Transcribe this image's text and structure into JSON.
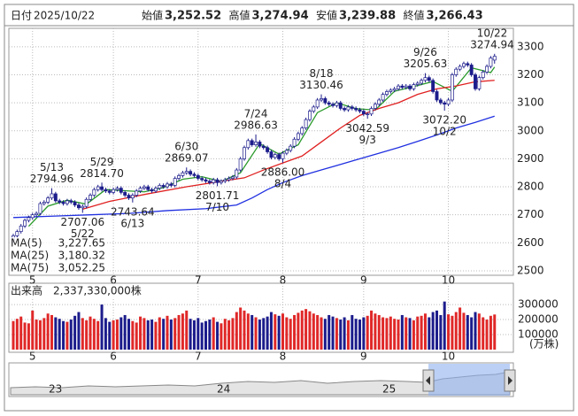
{
  "header": {
    "date_label": "日付",
    "date": "2025/10/22",
    "fields": [
      {
        "label": "始値",
        "value": "3,252.52",
        "color": "#000000"
      },
      {
        "label": "高値",
        "value": "3,274.94",
        "color": "#e00000"
      },
      {
        "label": "安値",
        "value": "3,239.88",
        "color": "#1a8a1a"
      },
      {
        "label": "終値",
        "value": "3,266.43",
        "color": "#000000"
      }
    ]
  },
  "chart_data": [
    {
      "type": "candlestick",
      "up_color": "#ffffff",
      "down_color": "#1c1c8c",
      "grid": true,
      "ylim": [
        2484,
        3366
      ],
      "yticks": [
        2500,
        2600,
        2700,
        2800,
        2900,
        3000,
        3100,
        3200,
        3300
      ],
      "xticks": [
        {
          "value": 5,
          "label": "5"
        },
        {
          "value": 26,
          "label": "6"
        },
        {
          "value": 48,
          "label": "7"
        },
        {
          "value": 70,
          "label": "8"
        },
        {
          "value": 91,
          "label": "9"
        },
        {
          "value": 113,
          "label": "10"
        }
      ],
      "ohlc": [
        [
          2610,
          2632,
          2600,
          2625
        ],
        [
          2625,
          2647,
          2618,
          2640
        ],
        [
          2640,
          2667,
          2633,
          2660
        ],
        [
          2660,
          2687,
          2653,
          2680
        ],
        [
          2680,
          2697,
          2673,
          2690
        ],
        [
          2690,
          2707,
          2683,
          2700
        ],
        [
          2700,
          2712,
          2693,
          2705
        ],
        [
          2705,
          2747,
          2698,
          2740
        ],
        [
          2740,
          2752,
          2733,
          2745
        ],
        [
          2745,
          2767,
          2738,
          2760
        ],
        [
          2760,
          2795,
          2753,
          2775
        ],
        [
          2775,
          2782,
          2743,
          2750
        ],
        [
          2750,
          2757,
          2738,
          2745
        ],
        [
          2745,
          2752,
          2733,
          2740
        ],
        [
          2740,
          2757,
          2733,
          2750
        ],
        [
          2750,
          2757,
          2738,
          2745
        ],
        [
          2745,
          2752,
          2728,
          2735
        ],
        [
          2735,
          2742,
          2718,
          2725
        ],
        [
          2725,
          2737,
          2707,
          2730
        ],
        [
          2730,
          2762,
          2723,
          2755
        ],
        [
          2755,
          2777,
          2748,
          2770
        ],
        [
          2770,
          2797,
          2763,
          2790
        ],
        [
          2790,
          2807,
          2783,
          2800
        ],
        [
          2800,
          2815,
          2783,
          2790
        ],
        [
          2790,
          2797,
          2778,
          2785
        ],
        [
          2785,
          2792,
          2773,
          2780
        ],
        [
          2780,
          2797,
          2773,
          2790
        ],
        [
          2790,
          2802,
          2783,
          2795
        ],
        [
          2795,
          2802,
          2773,
          2780
        ],
        [
          2780,
          2787,
          2763,
          2770
        ],
        [
          2770,
          2777,
          2753,
          2760
        ],
        [
          2760,
          2777,
          2744,
          2770
        ],
        [
          2770,
          2792,
          2763,
          2785
        ],
        [
          2785,
          2802,
          2778,
          2795
        ],
        [
          2795,
          2807,
          2788,
          2800
        ],
        [
          2800,
          2807,
          2783,
          2790
        ],
        [
          2790,
          2797,
          2778,
          2785
        ],
        [
          2785,
          2802,
          2778,
          2795
        ],
        [
          2795,
          2812,
          2788,
          2805
        ],
        [
          2805,
          2812,
          2793,
          2800
        ],
        [
          2800,
          2817,
          2793,
          2810
        ],
        [
          2810,
          2817,
          2798,
          2805
        ],
        [
          2805,
          2837,
          2798,
          2830
        ],
        [
          2830,
          2847,
          2823,
          2840
        ],
        [
          2840,
          2857,
          2833,
          2850
        ],
        [
          2850,
          2869,
          2843,
          2855
        ],
        [
          2855,
          2862,
          2838,
          2845
        ],
        [
          2845,
          2852,
          2833,
          2840
        ],
        [
          2840,
          2847,
          2823,
          2830
        ],
        [
          2830,
          2837,
          2818,
          2825
        ],
        [
          2825,
          2832,
          2813,
          2820
        ],
        [
          2820,
          2827,
          2808,
          2815
        ],
        [
          2815,
          2832,
          2808,
          2825
        ],
        [
          2825,
          2832,
          2802,
          2815
        ],
        [
          2815,
          2827,
          2808,
          2820
        ],
        [
          2820,
          2832,
          2813,
          2825
        ],
        [
          2825,
          2837,
          2818,
          2830
        ],
        [
          2830,
          2842,
          2823,
          2835
        ],
        [
          2835,
          2867,
          2828,
          2860
        ],
        [
          2860,
          2907,
          2853,
          2900
        ],
        [
          2900,
          2947,
          2893,
          2940
        ],
        [
          2940,
          2972,
          2933,
          2965
        ],
        [
          2965,
          2972,
          2943,
          2950
        ],
        [
          2950,
          2987,
          2943,
          2960
        ],
        [
          2960,
          2967,
          2938,
          2945
        ],
        [
          2945,
          2952,
          2933,
          2940
        ],
        [
          2940,
          2947,
          2918,
          2925
        ],
        [
          2925,
          2932,
          2898,
          2905
        ],
        [
          2905,
          2922,
          2898,
          2915
        ],
        [
          2915,
          2922,
          2893,
          2900
        ],
        [
          2900,
          2927,
          2886,
          2920
        ],
        [
          2920,
          2937,
          2913,
          2930
        ],
        [
          2930,
          2952,
          2923,
          2945
        ],
        [
          2945,
          2977,
          2938,
          2970
        ],
        [
          2970,
          2997,
          2963,
          2990
        ],
        [
          2990,
          3017,
          2983,
          3010
        ],
        [
          3010,
          3047,
          3003,
          3040
        ],
        [
          3040,
          3077,
          3033,
          3070
        ],
        [
          3070,
          3092,
          3063,
          3085
        ],
        [
          3085,
          3117,
          3078,
          3110
        ],
        [
          3110,
          3130,
          3103,
          3115
        ],
        [
          3115,
          3122,
          3093,
          3100
        ],
        [
          3100,
          3107,
          3088,
          3095
        ],
        [
          3095,
          3102,
          3083,
          3090
        ],
        [
          3090,
          3107,
          3083,
          3100
        ],
        [
          3100,
          3107,
          3073,
          3080
        ],
        [
          3080,
          3087,
          3068,
          3075
        ],
        [
          3075,
          3092,
          3068,
          3085
        ],
        [
          3085,
          3092,
          3073,
          3080
        ],
        [
          3080,
          3087,
          3068,
          3075
        ],
        [
          3075,
          3082,
          3063,
          3070
        ],
        [
          3070,
          3077,
          3053,
          3060
        ],
        [
          3060,
          3067,
          3043,
          3060
        ],
        [
          3060,
          3087,
          3053,
          3080
        ],
        [
          3080,
          3102,
          3073,
          3095
        ],
        [
          3095,
          3117,
          3088,
          3110
        ],
        [
          3110,
          3137,
          3103,
          3130
        ],
        [
          3130,
          3147,
          3123,
          3140
        ],
        [
          3140,
          3152,
          3133,
          3145
        ],
        [
          3145,
          3157,
          3138,
          3150
        ],
        [
          3150,
          3167,
          3143,
          3160
        ],
        [
          3160,
          3167,
          3148,
          3155
        ],
        [
          3155,
          3167,
          3148,
          3160
        ],
        [
          3160,
          3167,
          3143,
          3150
        ],
        [
          3150,
          3172,
          3143,
          3165
        ],
        [
          3165,
          3177,
          3158,
          3170
        ],
        [
          3170,
          3187,
          3163,
          3180
        ],
        [
          3180,
          3206,
          3173,
          3190
        ],
        [
          3190,
          3197,
          3173,
          3180
        ],
        [
          3180,
          3187,
          3133,
          3140
        ],
        [
          3140,
          3147,
          3103,
          3110
        ],
        [
          3110,
          3117,
          3093,
          3100
        ],
        [
          3100,
          3107,
          3072,
          3095
        ],
        [
          3095,
          3117,
          3088,
          3110
        ],
        [
          3110,
          3207,
          3103,
          3200
        ],
        [
          3200,
          3227,
          3193,
          3220
        ],
        [
          3220,
          3237,
          3213,
          3230
        ],
        [
          3230,
          3247,
          3223,
          3240
        ],
        [
          3240,
          3247,
          3228,
          3235
        ],
        [
          3235,
          3242,
          3193,
          3200
        ],
        [
          3200,
          3207,
          3143,
          3150
        ],
        [
          3150,
          3197,
          3143,
          3190
        ],
        [
          3190,
          3217,
          3183,
          3210
        ],
        [
          3210,
          3237,
          3203,
          3230
        ],
        [
          3230,
          3267,
          3223,
          3260
        ],
        [
          3252.52,
          3274.94,
          3239.88,
          3266.43
        ]
      ],
      "series": [
        {
          "name": "MA(5)",
          "color": "#2a9a2a",
          "value_label": "3,227.65",
          "x": [
            4,
            9,
            14,
            19,
            24,
            29,
            34,
            39,
            44,
            49,
            54,
            59,
            64,
            69,
            74,
            79,
            84,
            89,
            94,
            99,
            104,
            109,
            114,
            119,
            124,
            125
          ],
          "values": [
            2659,
            2731,
            2752,
            2738,
            2790,
            2786,
            2782,
            2797,
            2827,
            2836,
            2819,
            2850,
            2954,
            2917,
            2950,
            3065,
            3100,
            3079,
            3074,
            3141,
            3158,
            3176,
            3141,
            3225,
            3208,
            3227.65
          ]
        },
        {
          "name": "MA(25)",
          "color": "#e02020",
          "value_label": "3,180.32",
          "x": [
            18,
            25,
            35,
            45,
            55,
            60,
            65,
            70,
            75,
            80,
            85,
            90,
            95,
            100,
            105,
            110,
            115,
            120,
            125
          ],
          "values": [
            2720,
            2748,
            2775,
            2800,
            2822,
            2832,
            2860,
            2885,
            2910,
            2960,
            3010,
            3055,
            3080,
            3100,
            3130,
            3150,
            3160,
            3175,
            3180.32
          ]
        },
        {
          "name": "MA(75)",
          "color": "#2030e0",
          "value_label": "3,052.25",
          "x": [
            0,
            10,
            20,
            30,
            40,
            50,
            58,
            62,
            66,
            70,
            75,
            80,
            85,
            90,
            95,
            100,
            105,
            110,
            115,
            120,
            125
          ],
          "values": [
            2690,
            2695,
            2700,
            2705,
            2715,
            2722,
            2735,
            2760,
            2790,
            2815,
            2840,
            2860,
            2880,
            2900,
            2920,
            2940,
            2962,
            2985,
            3010,
            3030,
            3052.25
          ]
        }
      ],
      "annotations": [
        {
          "date": "5/13",
          "value": 2794.96,
          "x": 10
        },
        {
          "date": "5/22",
          "value": 2707.06,
          "x": 18
        },
        {
          "date": "5/29",
          "value": 2814.7,
          "value_label": "2814.70",
          "x": 23
        },
        {
          "date": "6/13",
          "value": 2743.64,
          "x": 31
        },
        {
          "date": "6/30",
          "value": 2869.07,
          "x": 45
        },
        {
          "date": "7/10",
          "value": 2801.71,
          "x": 53
        },
        {
          "date": "7/24",
          "value": 2986.63,
          "x": 63
        },
        {
          "date": "8/4",
          "value": 2886,
          "value_label": "2886.00",
          "x": 70
        },
        {
          "date": "8/18",
          "value": 3130.46,
          "x": 80
        },
        {
          "date": "9/3",
          "value": 3042.59,
          "x": 92
        },
        {
          "date": "9/26",
          "value": 3205.63,
          "x": 107
        },
        {
          "date": "10/2",
          "value": 3072.2,
          "value_label": "3072.20",
          "x": 112
        },
        {
          "date": "10/22",
          "value": 3274.94,
          "x": 125
        }
      ]
    },
    {
      "type": "bar",
      "title": "出来高　2,337,330,000株",
      "unit": "(万株)",
      "up_color": "#e02828",
      "down_color": "#1c1c8c",
      "ylim": [
        0,
        430000
      ],
      "yticks": [
        100000,
        200000,
        300000
      ],
      "xticks": [
        {
          "value": 5,
          "label": "5"
        },
        {
          "value": 26,
          "label": "6"
        },
        {
          "value": 48,
          "label": "7"
        },
        {
          "value": 70,
          "label": "8"
        },
        {
          "value": 91,
          "label": "9"
        },
        {
          "value": 113,
          "label": "10"
        }
      ],
      "values": [
        190000,
        205000,
        220000,
        180000,
        175000,
        260000,
        200000,
        195000,
        210000,
        240000,
        230000,
        215000,
        205000,
        190000,
        185000,
        200000,
        225000,
        250000,
        210000,
        195000,
        220000,
        205000,
        190000,
        300000,
        210000,
        185000,
        195000,
        200000,
        215000,
        230000,
        205000,
        190000,
        180000,
        220000,
        210000,
        195000,
        200000,
        185000,
        215000,
        205000,
        225000,
        200000,
        210000,
        230000,
        240000,
        260000,
        205000,
        195000,
        210000,
        180000,
        190000,
        200000,
        215000,
        185000,
        175000,
        205000,
        195000,
        210000,
        250000,
        280000,
        260000,
        240000,
        230000,
        215000,
        200000,
        210000,
        220000,
        250000,
        235000,
        225000,
        240000,
        215000,
        205000,
        230000,
        245000,
        260000,
        270000,
        255000,
        240000,
        230000,
        215000,
        205000,
        230000,
        220000,
        210000,
        200000,
        215000,
        195000,
        230000,
        205000,
        200000,
        215000,
        225000,
        260000,
        240000,
        230000,
        215000,
        210000,
        220000,
        205000,
        200000,
        230000,
        215000,
        210000,
        195000,
        220000,
        225000,
        240000,
        215000,
        250000,
        260000,
        230000,
        320000,
        235000,
        225000,
        250000,
        280000,
        245000,
        230000,
        215000,
        250000,
        240000,
        215000,
        200000,
        225000,
        233733
      ]
    }
  ],
  "navigator": {
    "labels": [
      "23",
      "24",
      "25"
    ]
  }
}
